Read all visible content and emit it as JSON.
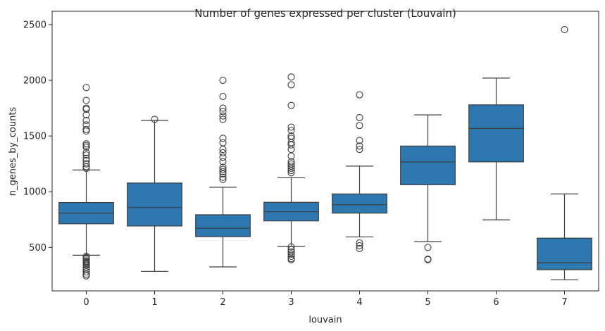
{
  "chart_data": {
    "type": "box",
    "title": "Number of genes expressed per cluster (Louvain)",
    "xlabel": "louvain",
    "ylabel": "n_genes_by_counts",
    "ylim": [
      110,
      2620
    ],
    "yticks": [
      500,
      1000,
      1500,
      2000,
      2500
    ],
    "box_color": "#2e78b1",
    "line_color": "#3d3d3d",
    "categories": [
      "0",
      "1",
      "2",
      "3",
      "4",
      "5",
      "6",
      "7"
    ],
    "boxes": [
      {
        "category": "0",
        "whisker_low": 430,
        "q1": 712,
        "median": 808,
        "q3": 903,
        "whisker_high": 1195,
        "outliers": [
          1935,
          1820,
          1750,
          1740,
          1690,
          1640,
          1600,
          1560,
          1545,
          1430,
          1415,
          1400,
          1350,
          1330,
          1300,
          1280,
          1250,
          1225,
          1210,
          420,
          410,
          395,
          380,
          370,
          360,
          350,
          340,
          320,
          300,
          280,
          260,
          245
        ]
      },
      {
        "category": "1",
        "whisker_low": 285,
        "q1": 692,
        "median": 858,
        "q3": 1078,
        "whisker_high": 1640,
        "outliers": [
          1650
        ]
      },
      {
        "category": "2",
        "whisker_low": 325,
        "q1": 597,
        "median": 672,
        "q3": 793,
        "whisker_high": 1040,
        "outliers": [
          2000,
          1855,
          1750,
          1720,
          1680,
          1650,
          1480,
          1440,
          1380,
          1350,
          1310,
          1270,
          1220,
          1200,
          1180,
          1160,
          1130,
          1110
        ]
      },
      {
        "category": "3",
        "whisker_low": 510,
        "q1": 738,
        "median": 820,
        "q3": 905,
        "whisker_high": 1125,
        "outliers": [
          2030,
          1960,
          1775,
          1580,
          1550,
          1500,
          1480,
          1440,
          1420,
          1380,
          1320,
          1270,
          1250,
          1230,
          1210,
          1190,
          1170,
          505,
          480,
          460,
          440,
          420,
          400,
          390
        ]
      },
      {
        "category": "4",
        "whisker_low": 595,
        "q1": 808,
        "median": 883,
        "q3": 980,
        "whisker_high": 1230,
        "outliers": [
          1870,
          1665,
          1595,
          1460,
          1410,
          1380,
          540,
          515,
          490
        ]
      },
      {
        "category": "5",
        "whisker_low": 552,
        "q1": 1063,
        "median": 1268,
        "q3": 1410,
        "whisker_high": 1690,
        "outliers": [
          500,
          395,
          390
        ]
      },
      {
        "category": "6",
        "whisker_low": 748,
        "q1": 1268,
        "median": 1568,
        "q3": 1780,
        "whisker_high": 2020,
        "outliers": []
      },
      {
        "category": "7",
        "whisker_low": 210,
        "q1": 300,
        "median": 362,
        "q3": 583,
        "whisker_high": 980,
        "outliers": [
          2455
        ]
      }
    ]
  }
}
